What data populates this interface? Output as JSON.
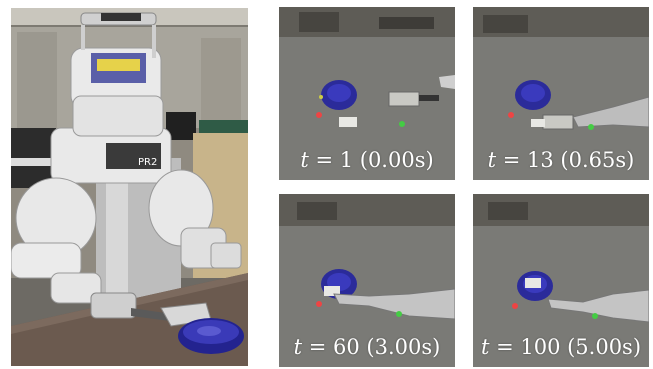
{
  "robot_photo": {
    "badge_text": "PR2"
  },
  "frames": [
    {
      "var": "t",
      "rest": " = 1 (0.00s)"
    },
    {
      "var": "t",
      "rest": " = 13 (0.65s)"
    },
    {
      "var": "t",
      "rest": " = 60 (3.00s)"
    },
    {
      "var": "t",
      "rest": " = 100 (5.00s)"
    }
  ],
  "colors": {
    "background": "#ffffff",
    "table_top_view": "#7a7a76",
    "bowl": "#2a2a9e",
    "label_text": "#ffffff"
  }
}
